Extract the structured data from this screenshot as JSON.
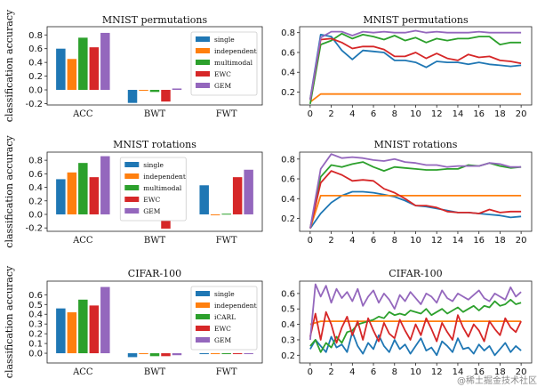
{
  "colors": {
    "single": "#1f77b4",
    "independent": "#ff7f0e",
    "multimodal": "#2ca02c",
    "iCARL": "#2ca02c",
    "EWC": "#d62728",
    "GEM": "#9467bd"
  },
  "ylabel": "classification accuracy",
  "watermark": "@稀土掘金技术社区",
  "chart_data": [
    {
      "type": "bar",
      "title": "MNIST permutations",
      "categories": [
        "ACC",
        "BWT",
        "FWT"
      ],
      "series": [
        {
          "name": "single",
          "values": [
            0.6,
            -0.19,
            0.0
          ]
        },
        {
          "name": "independent",
          "values": [
            0.45,
            0.0,
            0.0
          ]
        },
        {
          "name": "multimodal",
          "values": [
            0.76,
            -0.03,
            0.0
          ]
        },
        {
          "name": "EWC",
          "values": [
            0.62,
            -0.17,
            0.0
          ]
        },
        {
          "name": "GEM",
          "values": [
            0.83,
            0.02,
            0.0
          ]
        }
      ],
      "ylim": [
        -0.22,
        0.92
      ],
      "yticks": [
        "-0.2",
        "0.0",
        "0.2",
        "0.4",
        "0.6",
        "0.8"
      ],
      "legend": "top-right"
    },
    {
      "type": "line",
      "title": "MNIST permutations",
      "xticks": [
        "0",
        "2",
        "4",
        "6",
        "8",
        "10",
        "12",
        "14",
        "16",
        "18",
        "20"
      ],
      "yticks": [
        "0.2",
        "0.4",
        "0.6",
        "0.8"
      ],
      "xlim": [
        -1,
        21
      ],
      "ylim": [
        0.07,
        0.86
      ],
      "series": [
        {
          "name": "single",
          "x": [
            0,
            1,
            2,
            3,
            4,
            5,
            6,
            7,
            8,
            9,
            10,
            11,
            12,
            13,
            14,
            15,
            16,
            17,
            18,
            19,
            20
          ],
          "y": [
            0.13,
            0.78,
            0.76,
            0.62,
            0.53,
            0.62,
            0.61,
            0.6,
            0.52,
            0.52,
            0.5,
            0.45,
            0.51,
            0.5,
            0.5,
            0.48,
            0.5,
            0.48,
            0.47,
            0.46,
            0.47
          ]
        },
        {
          "name": "independent",
          "x": [
            0,
            1,
            2,
            3,
            4,
            5,
            6,
            7,
            8,
            9,
            10,
            11,
            12,
            13,
            14,
            15,
            16,
            17,
            18,
            19,
            20
          ],
          "y": [
            0.1,
            0.18,
            0.18,
            0.18,
            0.18,
            0.18,
            0.18,
            0.18,
            0.18,
            0.18,
            0.18,
            0.18,
            0.18,
            0.18,
            0.18,
            0.18,
            0.18,
            0.18,
            0.18,
            0.18,
            0.18
          ]
        },
        {
          "name": "multimodal",
          "x": [
            0,
            1,
            2,
            3,
            4,
            5,
            6,
            7,
            8,
            9,
            10,
            11,
            12,
            13,
            14,
            15,
            16,
            17,
            18,
            19,
            20
          ],
          "y": [
            0.08,
            0.68,
            0.72,
            0.79,
            0.74,
            0.78,
            0.76,
            0.73,
            0.77,
            0.72,
            0.75,
            0.7,
            0.74,
            0.72,
            0.74,
            0.74,
            0.76,
            0.76,
            0.68,
            0.7,
            0.7
          ]
        },
        {
          "name": "EWC",
          "x": [
            0,
            1,
            2,
            3,
            4,
            5,
            6,
            7,
            8,
            9,
            10,
            11,
            12,
            13,
            14,
            15,
            16,
            17,
            18,
            19,
            20
          ],
          "y": [
            0.12,
            0.73,
            0.74,
            0.7,
            0.64,
            0.66,
            0.66,
            0.63,
            0.56,
            0.56,
            0.6,
            0.54,
            0.59,
            0.54,
            0.52,
            0.58,
            0.55,
            0.56,
            0.52,
            0.51,
            0.49
          ]
        },
        {
          "name": "GEM",
          "x": [
            0,
            1,
            2,
            3,
            4,
            5,
            6,
            7,
            8,
            9,
            10,
            11,
            12,
            13,
            14,
            15,
            16,
            17,
            18,
            19,
            20
          ],
          "y": [
            0.12,
            0.75,
            0.81,
            0.81,
            0.77,
            0.81,
            0.8,
            0.81,
            0.8,
            0.8,
            0.82,
            0.8,
            0.81,
            0.8,
            0.8,
            0.8,
            0.81,
            0.8,
            0.8,
            0.8,
            0.8
          ]
        }
      ]
    },
    {
      "type": "bar",
      "title": "MNIST rotations",
      "categories": [
        "ACC",
        "BWT",
        "FWT"
      ],
      "series": [
        {
          "name": "single",
          "values": [
            0.52,
            -0.06,
            0.43
          ]
        },
        {
          "name": "independent",
          "values": [
            0.62,
            0.0,
            0.0
          ]
        },
        {
          "name": "multimodal",
          "values": [
            0.76,
            -0.02,
            0.01
          ]
        },
        {
          "name": "EWC",
          "values": [
            0.55,
            -0.21,
            0.55
          ]
        },
        {
          "name": "GEM",
          "values": [
            0.86,
            0.0,
            0.66
          ]
        }
      ],
      "ylim": [
        -0.25,
        0.92
      ],
      "yticks": [
        "-0.2",
        "0.0",
        "0.2",
        "0.4",
        "0.6",
        "0.8"
      ],
      "legend": "top-center"
    },
    {
      "type": "line",
      "title": "MNIST rotations",
      "xticks": [
        "0",
        "2",
        "4",
        "6",
        "8",
        "10",
        "12",
        "14",
        "16",
        "18",
        "20"
      ],
      "yticks": [
        "0.2",
        "0.4",
        "0.6",
        "0.8"
      ],
      "xlim": [
        -1,
        21
      ],
      "ylim": [
        0.07,
        0.87
      ],
      "series": [
        {
          "name": "single",
          "x": [
            0,
            1,
            2,
            3,
            4,
            5,
            6,
            7,
            8,
            9,
            10,
            11,
            12,
            13,
            14,
            15,
            16,
            17,
            18,
            19,
            20
          ],
          "y": [
            0.1,
            0.25,
            0.36,
            0.43,
            0.47,
            0.47,
            0.46,
            0.44,
            0.42,
            0.38,
            0.33,
            0.32,
            0.3,
            0.28,
            0.26,
            0.26,
            0.25,
            0.24,
            0.23,
            0.21,
            0.22
          ]
        },
        {
          "name": "independent",
          "x": [
            0,
            1,
            2,
            3,
            4,
            5,
            6,
            7,
            8,
            9,
            10,
            11,
            12,
            13,
            14,
            15,
            16,
            17,
            18,
            19,
            20
          ],
          "y": [
            0.1,
            0.43,
            0.43,
            0.43,
            0.43,
            0.43,
            0.43,
            0.43,
            0.43,
            0.43,
            0.43,
            0.43,
            0.43,
            0.43,
            0.43,
            0.43,
            0.43,
            0.43,
            0.43,
            0.43,
            0.43
          ]
        },
        {
          "name": "multimodal",
          "x": [
            0,
            1,
            2,
            3,
            4,
            5,
            6,
            7,
            8,
            9,
            10,
            11,
            12,
            13,
            14,
            15,
            16,
            17,
            18,
            19,
            20
          ],
          "y": [
            0.1,
            0.62,
            0.74,
            0.72,
            0.75,
            0.77,
            0.72,
            0.68,
            0.72,
            0.71,
            0.7,
            0.69,
            0.69,
            0.7,
            0.7,
            0.74,
            0.73,
            0.76,
            0.73,
            0.71,
            0.72
          ]
        },
        {
          "name": "EWC",
          "x": [
            0,
            1,
            2,
            3,
            4,
            5,
            6,
            7,
            8,
            9,
            10,
            11,
            12,
            13,
            14,
            15,
            16,
            17,
            18,
            19,
            20
          ],
          "y": [
            0.1,
            0.56,
            0.68,
            0.64,
            0.58,
            0.59,
            0.58,
            0.5,
            0.46,
            0.4,
            0.33,
            0.33,
            0.31,
            0.27,
            0.26,
            0.26,
            0.25,
            0.29,
            0.26,
            0.27,
            0.27
          ]
        },
        {
          "name": "GEM",
          "x": [
            0,
            1,
            2,
            3,
            4,
            5,
            6,
            7,
            8,
            9,
            10,
            11,
            12,
            13,
            14,
            15,
            16,
            17,
            18,
            19,
            20
          ],
          "y": [
            0.1,
            0.7,
            0.85,
            0.81,
            0.82,
            0.81,
            0.79,
            0.78,
            0.8,
            0.77,
            0.76,
            0.74,
            0.74,
            0.72,
            0.73,
            0.73,
            0.73,
            0.76,
            0.75,
            0.72,
            0.72
          ]
        }
      ]
    },
    {
      "type": "bar",
      "title": "CIFAR-100",
      "categories": [
        "ACC",
        "BWT",
        "FWT"
      ],
      "series": [
        {
          "name": "single",
          "values": [
            0.46,
            -0.04,
            0.0
          ]
        },
        {
          "name": "independent",
          "values": [
            0.42,
            0.0,
            0.0
          ]
        },
        {
          "name": "iCARL",
          "values": [
            0.55,
            -0.03,
            0.0
          ]
        },
        {
          "name": "EWC",
          "values": [
            0.49,
            -0.03,
            0.0
          ]
        },
        {
          "name": "GEM",
          "values": [
            0.68,
            -0.02,
            0.0
          ]
        }
      ],
      "ylim": [
        -0.1,
        0.74
      ],
      "yticks": [
        "0.0",
        "0.1",
        "0.2",
        "0.3",
        "0.4",
        "0.5",
        "0.6"
      ],
      "legend": "top-right"
    },
    {
      "type": "line",
      "title": "CIFAR-100",
      "xticks": [
        "0",
        "2",
        "4",
        "6",
        "8",
        "10",
        "12",
        "14",
        "16",
        "18",
        "20"
      ],
      "yticks": [
        "0.2",
        "0.3",
        "0.4",
        "0.5",
        "0.6"
      ],
      "xlim": [
        -1,
        21
      ],
      "ylim": [
        0.15,
        0.68
      ],
      "series": [
        {
          "name": "single",
          "x": [
            0,
            0.5,
            1,
            1.5,
            2,
            2.5,
            3,
            3.5,
            4,
            4.5,
            5,
            5.5,
            6,
            6.5,
            7,
            7.5,
            8,
            8.5,
            9,
            9.5,
            10,
            10.5,
            11,
            11.5,
            12,
            12.5,
            13,
            13.5,
            14,
            14.5,
            15,
            15.5,
            16,
            16.5,
            17,
            17.5,
            18,
            18.5,
            19,
            19.5,
            20
          ],
          "y": [
            0.24,
            0.3,
            0.26,
            0.22,
            0.32,
            0.25,
            0.27,
            0.22,
            0.35,
            0.26,
            0.21,
            0.28,
            0.24,
            0.33,
            0.26,
            0.22,
            0.3,
            0.24,
            0.27,
            0.21,
            0.26,
            0.31,
            0.23,
            0.25,
            0.2,
            0.29,
            0.26,
            0.22,
            0.31,
            0.24,
            0.25,
            0.21,
            0.27,
            0.23,
            0.26,
            0.2,
            0.24,
            0.28,
            0.22,
            0.26,
            0.23
          ]
        },
        {
          "name": "independent",
          "x": [
            0,
            1,
            2,
            3,
            4,
            5,
            6,
            7,
            8,
            9,
            10,
            11,
            12,
            13,
            14,
            15,
            16,
            17,
            18,
            19,
            20
          ],
          "y": [
            0.4,
            0.42,
            0.42,
            0.42,
            0.42,
            0.42,
            0.42,
            0.42,
            0.42,
            0.42,
            0.42,
            0.42,
            0.42,
            0.42,
            0.42,
            0.42,
            0.42,
            0.42,
            0.42,
            0.42,
            0.42
          ]
        },
        {
          "name": "iCARL",
          "x": [
            0,
            0.5,
            1,
            1.5,
            2,
            2.5,
            3,
            3.5,
            4,
            4.5,
            5,
            5.5,
            6,
            6.5,
            7,
            7.5,
            8,
            8.5,
            9,
            9.5,
            10,
            10.5,
            11,
            11.5,
            12,
            12.5,
            13,
            13.5,
            14,
            14.5,
            15,
            15.5,
            16,
            16.5,
            17,
            17.5,
            18,
            18.5,
            19,
            19.5,
            20
          ],
          "y": [
            0.26,
            0.3,
            0.22,
            0.28,
            0.25,
            0.32,
            0.28,
            0.35,
            0.36,
            0.4,
            0.41,
            0.42,
            0.43,
            0.45,
            0.44,
            0.48,
            0.46,
            0.47,
            0.46,
            0.49,
            0.48,
            0.47,
            0.5,
            0.46,
            0.48,
            0.5,
            0.47,
            0.49,
            0.51,
            0.48,
            0.5,
            0.52,
            0.49,
            0.52,
            0.51,
            0.55,
            0.52,
            0.53,
            0.56,
            0.53,
            0.54
          ]
        },
        {
          "name": "EWC",
          "x": [
            0,
            0.5,
            1,
            1.5,
            2,
            2.5,
            3,
            3.5,
            4,
            4.5,
            5,
            5.5,
            6,
            6.5,
            7,
            7.5,
            8,
            8.5,
            9,
            9.5,
            10,
            10.5,
            11,
            11.5,
            12,
            12.5,
            13,
            13.5,
            14,
            14.5,
            15,
            15.5,
            16,
            16.5,
            17,
            17.5,
            18,
            18.5,
            19,
            19.5,
            20
          ],
          "y": [
            0.32,
            0.47,
            0.3,
            0.48,
            0.4,
            0.28,
            0.38,
            0.45,
            0.33,
            0.42,
            0.3,
            0.44,
            0.36,
            0.29,
            0.41,
            0.34,
            0.31,
            0.43,
            0.36,
            0.3,
            0.4,
            0.33,
            0.44,
            0.37,
            0.29,
            0.41,
            0.35,
            0.3,
            0.46,
            0.38,
            0.32,
            0.4,
            0.36,
            0.29,
            0.42,
            0.37,
            0.33,
            0.44,
            0.38,
            0.35,
            0.42
          ]
        },
        {
          "name": "GEM",
          "x": [
            0,
            0.5,
            1,
            1.5,
            2,
            2.5,
            3,
            3.5,
            4,
            4.5,
            5,
            5.5,
            6,
            6.5,
            7,
            7.5,
            8,
            8.5,
            9,
            9.5,
            10,
            10.5,
            11,
            11.5,
            12,
            12.5,
            13,
            13.5,
            14,
            14.5,
            15,
            15.5,
            16,
            16.5,
            17,
            17.5,
            18,
            18.5,
            19,
            19.5,
            20
          ],
          "y": [
            0.3,
            0.66,
            0.58,
            0.65,
            0.54,
            0.63,
            0.57,
            0.61,
            0.55,
            0.63,
            0.52,
            0.58,
            0.62,
            0.54,
            0.6,
            0.56,
            0.5,
            0.59,
            0.55,
            0.61,
            0.57,
            0.53,
            0.6,
            0.58,
            0.54,
            0.62,
            0.57,
            0.55,
            0.6,
            0.58,
            0.56,
            0.59,
            0.62,
            0.57,
            0.55,
            0.6,
            0.58,
            0.56,
            0.64,
            0.58,
            0.61
          ]
        }
      ]
    }
  ]
}
